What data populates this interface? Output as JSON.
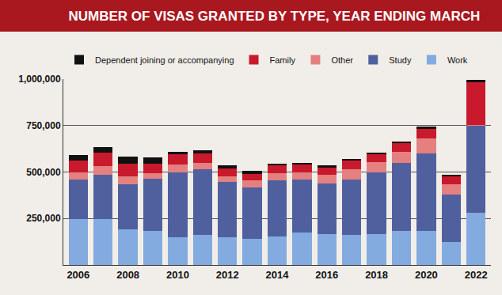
{
  "chart_data": {
    "type": "bar",
    "title": "NUMBER OF VISAS GRANTED BY TYPE, YEAR ENDING MARCH",
    "categories": [
      "2006",
      null,
      "2008",
      null,
      "2010",
      null,
      "2012",
      null,
      "2014",
      null,
      "2016",
      null,
      "2018",
      null,
      "2020",
      null,
      "2022"
    ],
    "series": [
      {
        "name": "Work",
        "color": "#83abe0",
        "values": [
          245000,
          245000,
          190000,
          185000,
          150000,
          160000,
          150000,
          140000,
          155000,
          175000,
          165000,
          160000,
          165000,
          185000,
          185000,
          125000,
          280000
        ]
      },
      {
        "name": "Study",
        "color": "#50609f",
        "values": [
          215000,
          240000,
          245000,
          280000,
          350000,
          355000,
          295000,
          275000,
          300000,
          285000,
          275000,
          300000,
          335000,
          365000,
          415000,
          255000,
          470000
        ]
      },
      {
        "name": "Other",
        "color": "#e4807f",
        "values": [
          40000,
          45000,
          40000,
          30000,
          40000,
          35000,
          30000,
          40000,
          40000,
          40000,
          45000,
          55000,
          55000,
          60000,
          80000,
          55000,
          5000
        ]
      },
      {
        "name": "Family",
        "color": "#c81a2c",
        "values": [
          60000,
          75000,
          70000,
          50000,
          55000,
          50000,
          45000,
          35000,
          40000,
          40000,
          40000,
          45000,
          40000,
          45000,
          50000,
          40000,
          230000
        ]
      },
      {
        "name": "Dependent joining or accompanying",
        "color": "#111111",
        "values": [
          30000,
          30000,
          40000,
          35000,
          15000,
          15000,
          15000,
          15000,
          10000,
          10000,
          10000,
          10000,
          10000,
          10000,
          15000,
          10000,
          10000
        ]
      }
    ],
    "stacked": true,
    "ylim": [
      0,
      1000000
    ],
    "yticks": [
      {
        "value": 250000,
        "label": "250,000"
      },
      {
        "value": 500000,
        "label": "500,000"
      },
      {
        "value": 750000,
        "label": "750,000"
      },
      {
        "value": 1000000,
        "label": "1,000,000"
      }
    ],
    "grid": true,
    "legend": "top left"
  }
}
